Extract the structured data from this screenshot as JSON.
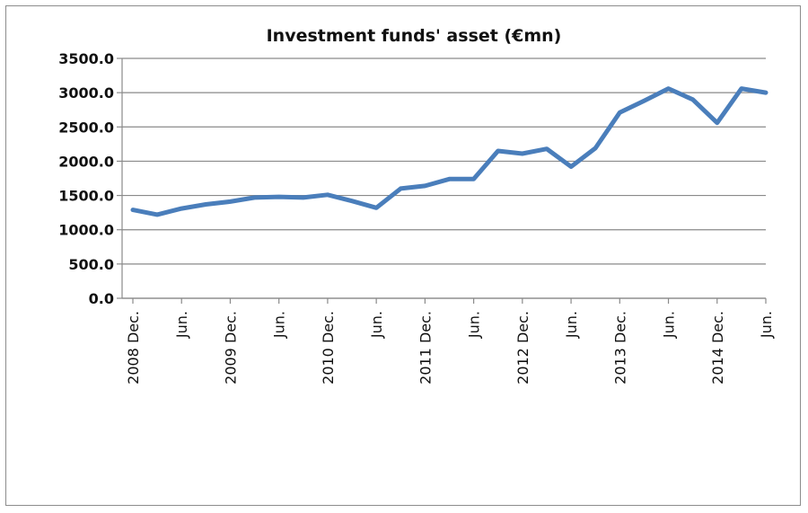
{
  "chart_data": {
    "type": "line",
    "title": "Investment funds' asset (€mn)",
    "xlabel": "",
    "ylabel": "",
    "ylim": [
      0,
      3500
    ],
    "yticks": [
      "0.0",
      "500.0",
      "1000.0",
      "1500.0",
      "2000.0",
      "2500.0",
      "3000.0",
      "3500.0"
    ],
    "grid": true,
    "legend": "none",
    "x_tick_labels": [
      {
        "index": 0,
        "label": "2008 Dec."
      },
      {
        "index": 2,
        "label": "Jun."
      },
      {
        "index": 4,
        "label": "2009 Dec."
      },
      {
        "index": 6,
        "label": "Jun."
      },
      {
        "index": 8,
        "label": "2010 Dec."
      },
      {
        "index": 10,
        "label": "Jun."
      },
      {
        "index": 12,
        "label": "2011 Dec."
      },
      {
        "index": 14,
        "label": "Jun."
      },
      {
        "index": 16,
        "label": "2012 Dec."
      },
      {
        "index": 18,
        "label": "Jun."
      },
      {
        "index": 20,
        "label": "2013 Dec."
      },
      {
        "index": 22,
        "label": "Jun."
      },
      {
        "index": 24,
        "label": "2014 Dec."
      },
      {
        "index": 26,
        "label": "Jun."
      }
    ],
    "series": [
      {
        "color": "#4a7ebb",
        "values": [
          1290,
          1220,
          1310,
          1370,
          1410,
          1470,
          1480,
          1470,
          1510,
          1420,
          1320,
          1600,
          1640,
          1740,
          1740,
          2150,
          2110,
          2180,
          1920,
          2190,
          2710,
          2880,
          3060,
          2900,
          2560,
          3060,
          3000
        ]
      }
    ]
  }
}
